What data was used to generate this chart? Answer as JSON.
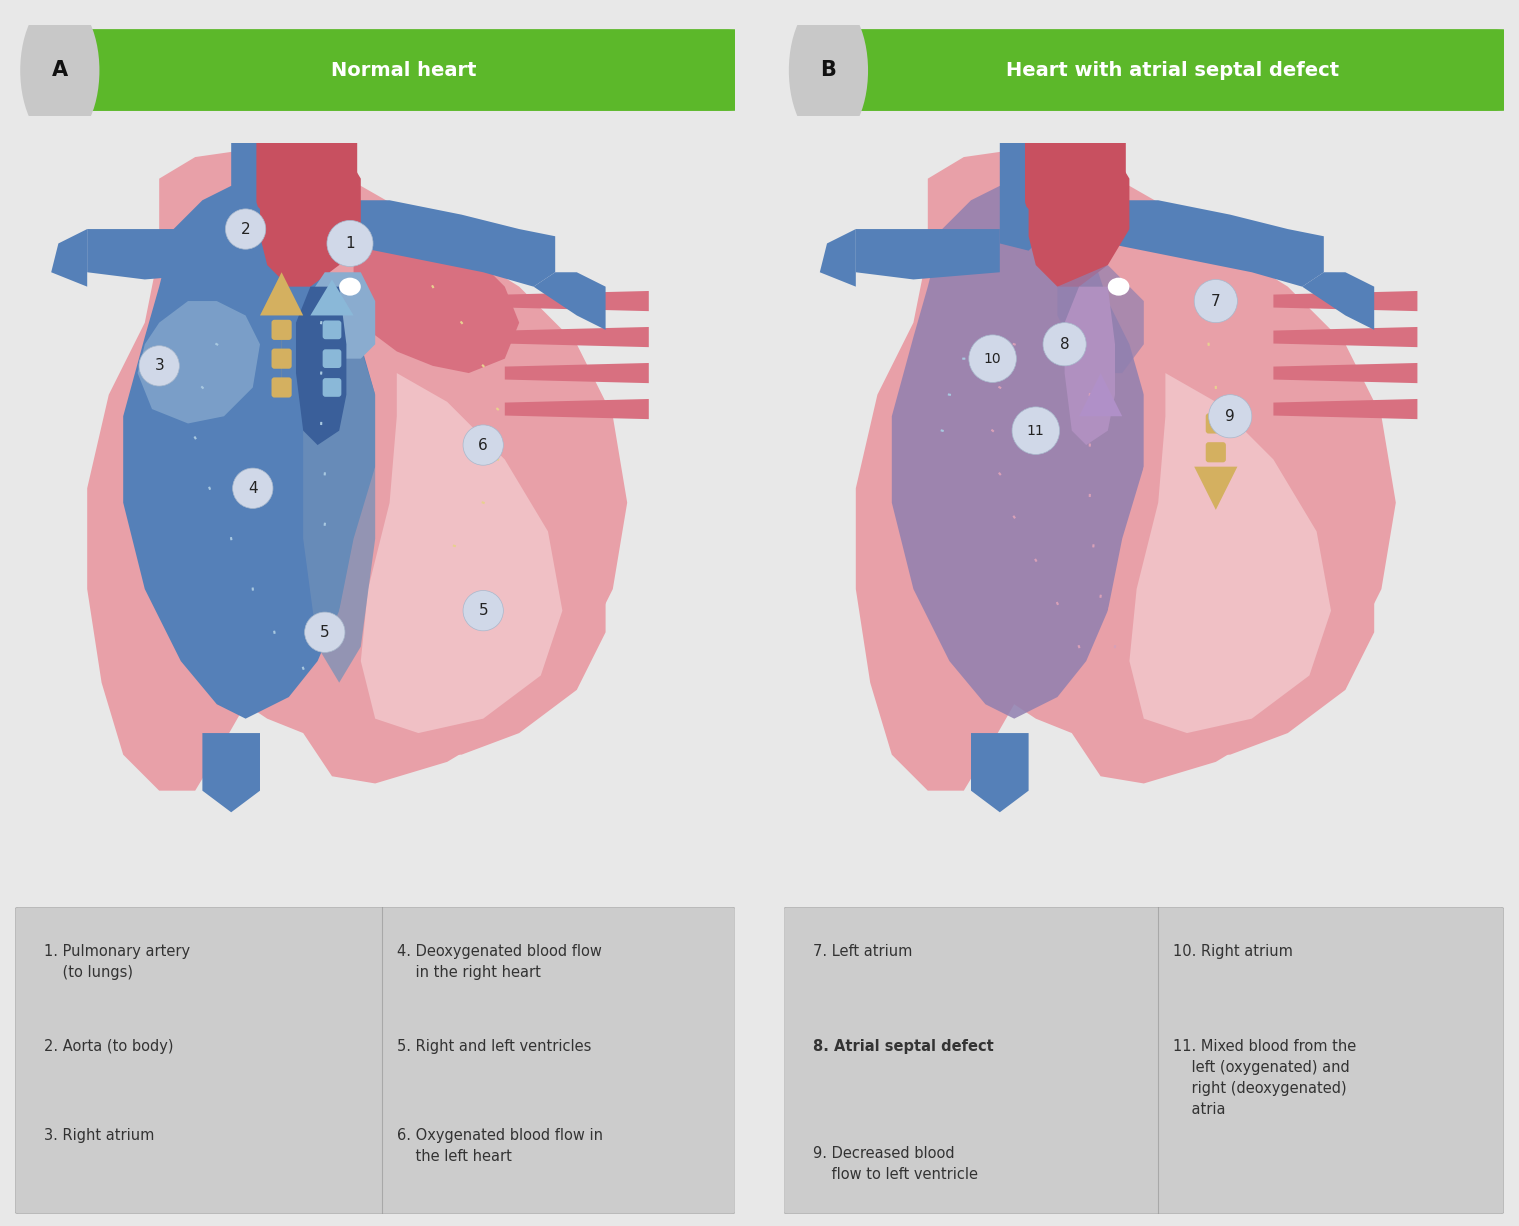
{
  "bg_color": "#e8e8e8",
  "panel_bg": "#ebebeb",
  "legend_bg": "#cccccc",
  "header_color": "#5cb82a",
  "header_text_color": "#ffffff",
  "label_circle_color": "#c8c8c8",
  "label_A": "A",
  "label_B": "B",
  "title_left": "Normal heart",
  "title_right": "Heart with atrial septal defect",
  "blue": "#5580b8",
  "blue_dark": "#3a5f9a",
  "blue_light": "#7ba0cc",
  "blue_pale": "#8aaccf",
  "red_dark": "#c85060",
  "red_med": "#d87080",
  "red_light": "#e8a0a8",
  "red_pale": "#f0c0c5",
  "purple": "#9080b0",
  "purple_light": "#b090c0",
  "purple_pale": "#c8a8d0",
  "beige_dash": "#e8d090",
  "blue_dash": "#a8c8e0",
  "pink_dash": "#d8a0b8",
  "arrow_tan": "#d4b060",
  "arrow_blue": "#8ab8d8",
  "arrow_purple": "#b090c8",
  "circle_fill": "#d0d8e8",
  "circle_border": "#a8b8cc",
  "white": "#ffffff"
}
